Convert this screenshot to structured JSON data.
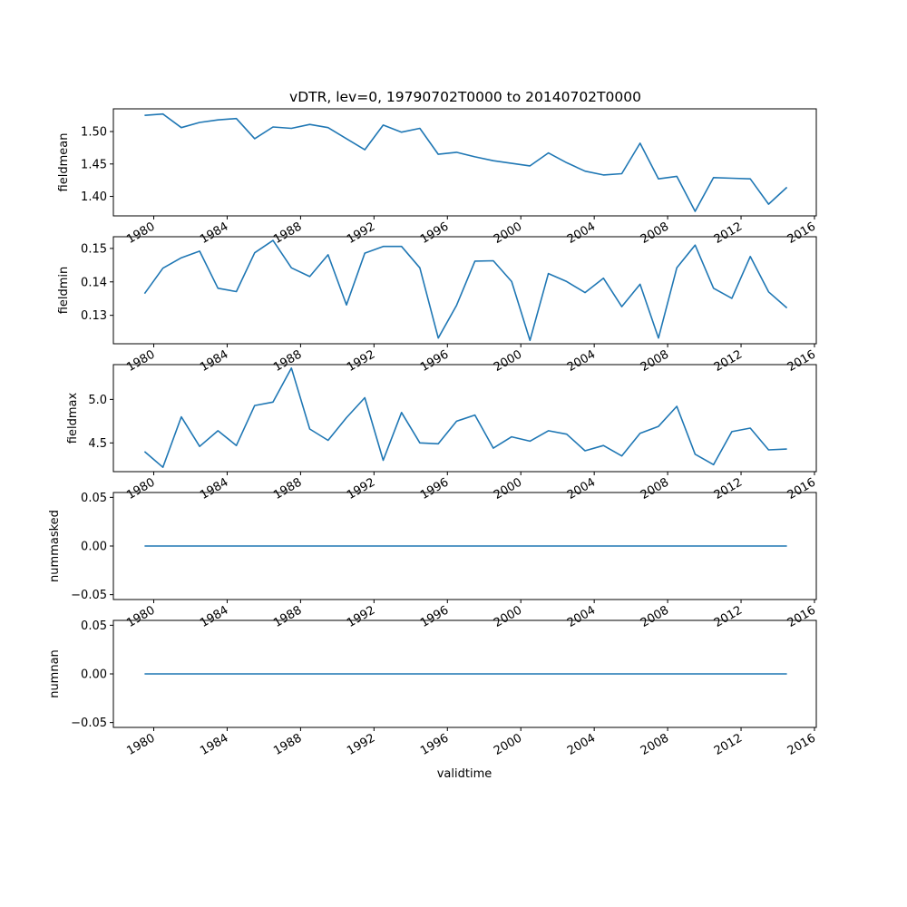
{
  "title": "vDTR, lev=0, 19790702T0000 to 20140702T0000",
  "xlabel": "validtime",
  "colors": {
    "line": "#1f77b4",
    "axes": "#000000",
    "background": "#ffffff"
  },
  "chart_data": [
    {
      "type": "line",
      "ylabel": "fieldmean",
      "x": [
        1979.5,
        1980.5,
        1981.5,
        1982.5,
        1983.5,
        1984.5,
        1985.5,
        1986.5,
        1987.5,
        1988.5,
        1989.5,
        1990.5,
        1991.5,
        1992.5,
        1993.5,
        1994.5,
        1995.5,
        1996.5,
        1997.5,
        1998.5,
        1999.5,
        2000.5,
        2001.5,
        2002.5,
        2003.5,
        2004.5,
        2005.5,
        2006.5,
        2007.5,
        2008.5,
        2009.5,
        2010.5,
        2011.5,
        2012.5,
        2013.5,
        2014.5
      ],
      "values": [
        1.525,
        1.527,
        1.506,
        1.514,
        1.518,
        1.52,
        1.489,
        1.507,
        1.505,
        1.511,
        1.506,
        1.489,
        1.472,
        1.51,
        1.499,
        1.505,
        1.465,
        1.468,
        1.461,
        1.455,
        1.451,
        1.447,
        1.467,
        1.452,
        1.439,
        1.433,
        1.435,
        1.482,
        1.427,
        1.431,
        1.377,
        1.429,
        1.428,
        1.427,
        1.388,
        1.414
      ],
      "yticks": [
        1.4,
        1.45,
        1.5
      ],
      "ytick_labels": [
        "1.40",
        "1.45",
        "1.50"
      ],
      "xlim": [
        1977.8,
        2016.1
      ],
      "ylim": [
        1.37,
        1.535
      ]
    },
    {
      "type": "line",
      "ylabel": "fieldmin",
      "x": [
        1979.5,
        1980.5,
        1981.5,
        1982.5,
        1983.5,
        1984.5,
        1985.5,
        1986.5,
        1987.5,
        1988.5,
        1989.5,
        1990.5,
        1991.5,
        1992.5,
        1993.5,
        1994.5,
        1995.5,
        1996.5,
        1997.5,
        1998.5,
        1999.5,
        2000.5,
        2001.5,
        2002.5,
        2003.5,
        2004.5,
        2005.5,
        2006.5,
        2007.5,
        2008.5,
        2009.5,
        2010.5,
        2011.5,
        2012.5,
        2013.5,
        2014.5
      ],
      "values": [
        0.1365,
        0.1441,
        0.1472,
        0.1492,
        0.1381,
        0.1371,
        0.1487,
        0.1524,
        0.1442,
        0.1416,
        0.1481,
        0.1331,
        0.1486,
        0.1506,
        0.1506,
        0.1442,
        0.1232,
        0.133,
        0.1462,
        0.1463,
        0.1401,
        0.1225,
        0.1425,
        0.1401,
        0.1368,
        0.1411,
        0.1326,
        0.1393,
        0.1232,
        0.1442,
        0.151,
        0.1381,
        0.1351,
        0.1476,
        0.137,
        0.1322
      ],
      "yticks": [
        0.13,
        0.14,
        0.15
      ],
      "ytick_labels": [
        "0.13",
        "0.14",
        "0.15"
      ],
      "xlim": [
        1977.8,
        2016.1
      ],
      "ylim": [
        0.1215,
        0.1535
      ]
    },
    {
      "type": "line",
      "ylabel": "fieldmax",
      "x": [
        1979.5,
        1980.5,
        1981.5,
        1982.5,
        1983.5,
        1984.5,
        1985.5,
        1986.5,
        1987.5,
        1988.5,
        1989.5,
        1990.5,
        1991.5,
        1992.5,
        1993.5,
        1994.5,
        1995.5,
        1996.5,
        1997.5,
        1998.5,
        1999.5,
        2000.5,
        2001.5,
        2002.5,
        2003.5,
        2004.5,
        2005.5,
        2006.5,
        2007.5,
        2008.5,
        2009.5,
        2010.5,
        2011.5,
        2012.5,
        2013.5,
        2014.5
      ],
      "values": [
        4.4,
        4.22,
        4.8,
        4.46,
        4.64,
        4.47,
        4.93,
        4.97,
        5.36,
        4.66,
        4.53,
        4.79,
        5.02,
        4.3,
        4.85,
        4.5,
        4.49,
        4.75,
        4.82,
        4.44,
        4.57,
        4.52,
        4.64,
        4.6,
        4.41,
        4.47,
        4.35,
        4.61,
        4.69,
        4.92,
        4.37,
        4.25,
        4.63,
        4.67,
        4.42,
        4.43
      ],
      "yticks": [
        4.5,
        5.0
      ],
      "ytick_labels": [
        "4.5",
        "5.0"
      ],
      "xlim": [
        1977.8,
        2016.1
      ],
      "ylim": [
        4.17,
        5.4
      ]
    },
    {
      "type": "line",
      "ylabel": "nummasked",
      "x": [
        1979.5,
        2014.5
      ],
      "values": [
        0.0,
        0.0
      ],
      "yticks": [
        -0.05,
        0.0,
        0.05
      ],
      "ytick_labels": [
        "−0.05",
        "0.00",
        "0.05"
      ],
      "xlim": [
        1977.8,
        2016.1
      ],
      "ylim": [
        -0.055,
        0.055
      ]
    },
    {
      "type": "line",
      "ylabel": "numnan",
      "x": [
        1979.5,
        2014.5
      ],
      "values": [
        0.0,
        0.0
      ],
      "yticks": [
        -0.05,
        0.0,
        0.05
      ],
      "ytick_labels": [
        "−0.05",
        "0.00",
        "0.05"
      ],
      "xlim": [
        1977.8,
        2016.1
      ],
      "ylim": [
        -0.055,
        0.055
      ]
    }
  ],
  "xticks": [
    1980,
    1984,
    1988,
    1992,
    1996,
    2000,
    2004,
    2008,
    2012,
    2016
  ],
  "xtick_labels": [
    "1980",
    "1984",
    "1988",
    "1992",
    "1996",
    "2000",
    "2004",
    "2008",
    "2012",
    "2016"
  ]
}
